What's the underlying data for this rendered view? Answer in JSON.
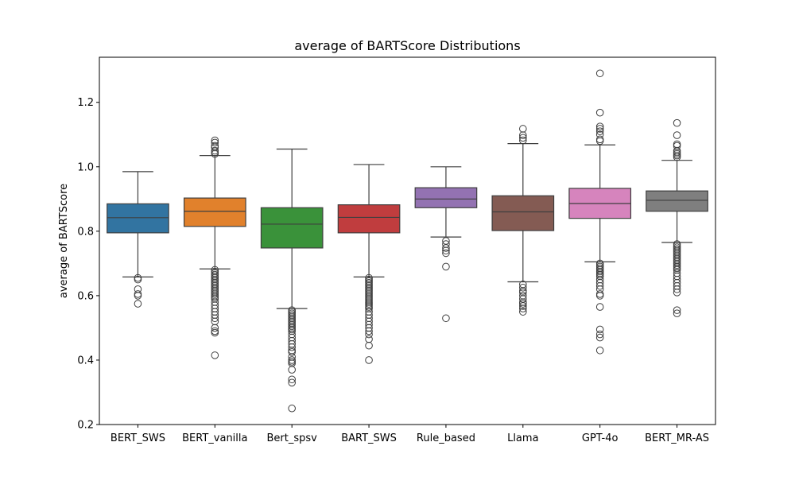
{
  "chart_data": {
    "type": "boxplot",
    "title": "average of BARTScore Distributions",
    "xlabel": "",
    "ylabel": "average of BARTScore",
    "ylim": [
      0.2,
      1.34
    ],
    "yticks": [
      0.2,
      0.4,
      0.6,
      0.8,
      1.0,
      1.2
    ],
    "ytick_labels": [
      "0.2",
      "0.4",
      "0.6",
      "0.8",
      "1.0",
      "1.2"
    ],
    "grid": false,
    "categories": [
      "BERT_SWS",
      "BERT_vanilla",
      "Bert_spsv",
      "BART_SWS",
      "Rule_based",
      "Llama",
      "GPT-4o",
      "BERT_MR-AS"
    ],
    "series": [
      {
        "name": "BERT_SWS",
        "color": "#3274a1",
        "q1": 0.795,
        "median": 0.842,
        "q3": 0.885,
        "whisker_low": 0.658,
        "whisker_high": 0.985,
        "outliers": [
          0.655,
          0.65,
          0.62,
          0.605,
          0.6,
          0.575
        ]
      },
      {
        "name": "BERT_vanilla",
        "color": "#e1812c",
        "q1": 0.815,
        "median": 0.862,
        "q3": 0.903,
        "whisker_low": 0.683,
        "whisker_high": 1.035,
        "outliers": [
          1.082,
          1.075,
          1.065,
          1.06,
          1.05,
          1.045,
          1.04,
          0.68,
          0.675,
          0.67,
          0.665,
          0.66,
          0.655,
          0.65,
          0.645,
          0.64,
          0.635,
          0.63,
          0.625,
          0.62,
          0.615,
          0.61,
          0.605,
          0.6,
          0.595,
          0.59,
          0.58,
          0.57,
          0.56,
          0.55,
          0.54,
          0.53,
          0.52,
          0.5,
          0.49,
          0.485,
          0.415
        ]
      },
      {
        "name": "Bert_spsv",
        "color": "#3a923a",
        "q1": 0.748,
        "median": 0.822,
        "q3": 0.873,
        "whisker_low": 0.56,
        "whisker_high": 1.055,
        "outliers": [
          0.555,
          0.55,
          0.545,
          0.54,
          0.535,
          0.53,
          0.525,
          0.52,
          0.515,
          0.51,
          0.505,
          0.5,
          0.495,
          0.49,
          0.48,
          0.47,
          0.46,
          0.45,
          0.44,
          0.43,
          0.425,
          0.41,
          0.4,
          0.395,
          0.39,
          0.37,
          0.34,
          0.33,
          0.25
        ]
      },
      {
        "name": "BART_SWS",
        "color": "#c03d3e",
        "q1": 0.795,
        "median": 0.843,
        "q3": 0.882,
        "whisker_low": 0.658,
        "whisker_high": 1.007,
        "outliers": [
          0.655,
          0.65,
          0.645,
          0.64,
          0.635,
          0.63,
          0.625,
          0.62,
          0.615,
          0.61,
          0.605,
          0.6,
          0.595,
          0.59,
          0.585,
          0.58,
          0.575,
          0.57,
          0.565,
          0.56,
          0.55,
          0.54,
          0.53,
          0.52,
          0.51,
          0.5,
          0.49,
          0.48,
          0.465,
          0.445,
          0.4
        ]
      },
      {
        "name": "Rule_based",
        "color": "#9372b2",
        "q1": 0.873,
        "median": 0.9,
        "q3": 0.935,
        "whisker_low": 0.782,
        "whisker_high": 1.0,
        "outliers": [
          0.77,
          0.76,
          0.748,
          0.74,
          0.732,
          0.69,
          0.53
        ]
      },
      {
        "name": "Llama",
        "color": "#845b53",
        "q1": 0.802,
        "median": 0.86,
        "q3": 0.91,
        "whisker_low": 0.643,
        "whisker_high": 1.072,
        "outliers": [
          1.118,
          1.098,
          1.09,
          1.082,
          0.635,
          0.625,
          0.615,
          0.61,
          0.6,
          0.59,
          0.58,
          0.575,
          0.568,
          0.56,
          0.55
        ]
      },
      {
        "name": "GPT-4o",
        "color": "#d684bd",
        "q1": 0.84,
        "median": 0.886,
        "q3": 0.933,
        "whisker_low": 0.705,
        "whisker_high": 1.068,
        "outliers": [
          1.29,
          1.168,
          1.125,
          1.118,
          1.11,
          1.1,
          1.085,
          1.08,
          0.7,
          0.695,
          0.69,
          0.685,
          0.68,
          0.675,
          0.67,
          0.665,
          0.66,
          0.65,
          0.64,
          0.63,
          0.62,
          0.605,
          0.6,
          0.565,
          0.495,
          0.48,
          0.47,
          0.43
        ]
      },
      {
        "name": "BERT_MR-AS",
        "color": "#7f7f7f",
        "q1": 0.862,
        "median": 0.896,
        "q3": 0.925,
        "whisker_low": 0.765,
        "whisker_high": 1.02,
        "outliers": [
          1.136,
          1.098,
          1.07,
          1.065,
          1.05,
          1.045,
          1.04,
          1.035,
          1.03,
          0.76,
          0.755,
          0.75,
          0.745,
          0.74,
          0.735,
          0.73,
          0.725,
          0.72,
          0.715,
          0.71,
          0.705,
          0.7,
          0.695,
          0.69,
          0.685,
          0.68,
          0.67,
          0.66,
          0.65,
          0.64,
          0.63,
          0.62,
          0.61,
          0.555,
          0.545
        ]
      }
    ]
  }
}
